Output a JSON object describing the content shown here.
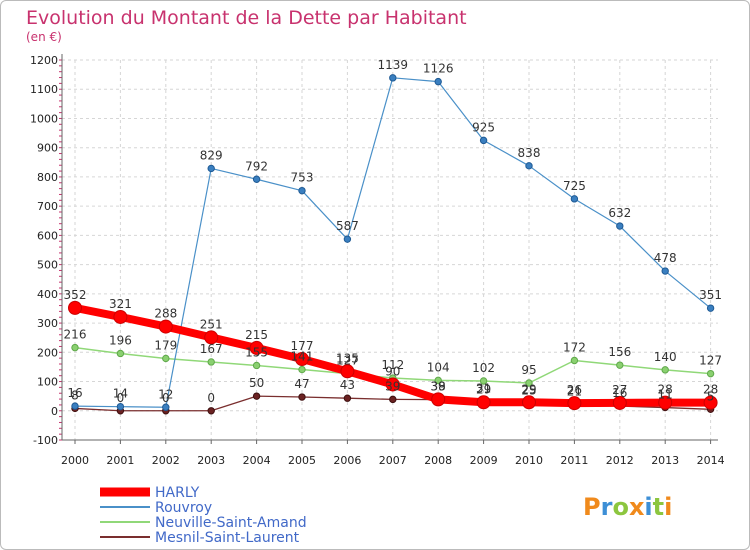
{
  "chart_data": {
    "type": "line",
    "title": "Evolution du Montant de la Dette par Habitant",
    "subtitle": "(en €)",
    "x": [
      "2000",
      "2001",
      "2002",
      "2003",
      "2004",
      "2005",
      "2006",
      "2007",
      "2008",
      "2009",
      "2010",
      "2011",
      "2012",
      "2013",
      "2014"
    ],
    "ylim": [
      -100,
      1200
    ],
    "yticks": [
      -100,
      0,
      100,
      200,
      300,
      400,
      500,
      600,
      700,
      800,
      900,
      1000,
      1100,
      1200
    ],
    "grid": true,
    "legend_position": "bottom-left",
    "series": [
      {
        "name": "HARLY",
        "color": "#ff0000",
        "values": [
          352,
          321,
          288,
          251,
          215,
          177,
          135,
          90,
          39,
          29,
          29,
          26,
          27,
          28,
          28
        ]
      },
      {
        "name": "Rouvroy",
        "color": "#4a90c8",
        "values": [
          16,
          14,
          12,
          829,
          792,
          753,
          587,
          1139,
          1126,
          925,
          838,
          725,
          632,
          478,
          351
        ]
      },
      {
        "name": "Neuville-Saint-Amand",
        "color": "#90d878",
        "values": [
          216,
          196,
          179,
          167,
          155,
          141,
          127,
          112,
          104,
          102,
          95,
          172,
          156,
          140,
          127
        ]
      },
      {
        "name": "Mesnil-Saint-Laurent",
        "color": "#7a2e2e",
        "values": [
          8,
          0,
          0,
          0,
          50,
          47,
          43,
          39,
          38,
          31,
          25,
          21,
          16,
          11,
          5
        ]
      }
    ]
  },
  "logo": {
    "text": "Proxiti"
  }
}
